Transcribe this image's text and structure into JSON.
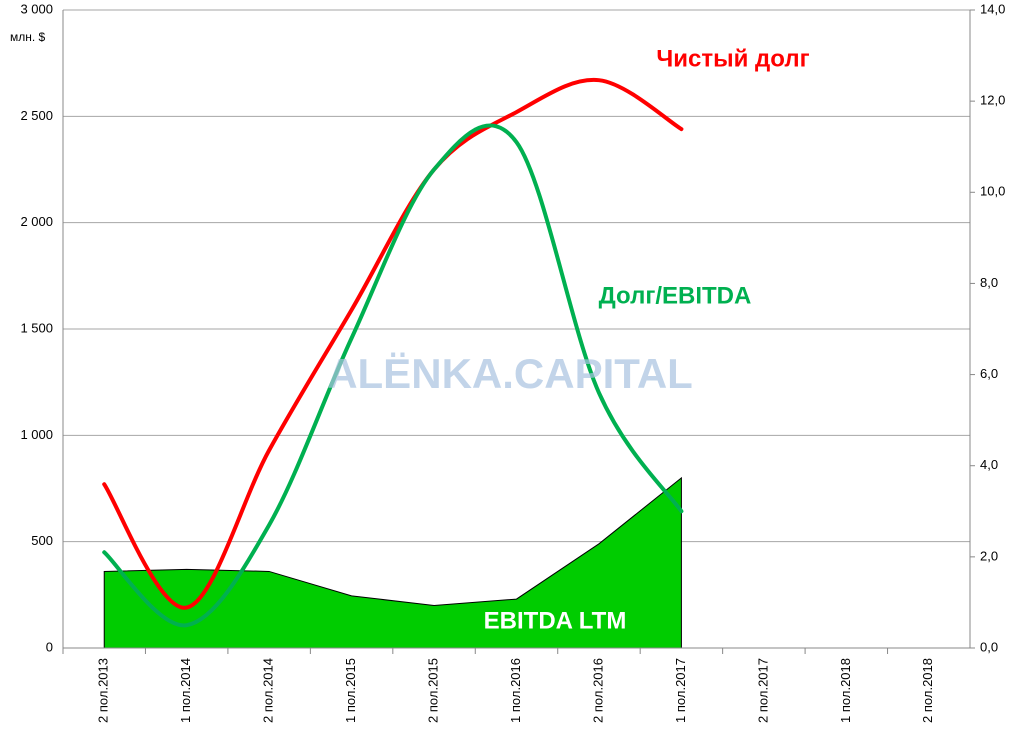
{
  "chart_data": {
    "type": "combo",
    "y_label": "млн. $",
    "categories": [
      "2 пол.2013",
      "1 пол.2014",
      "2 пол.2014",
      "1 пол.2015",
      "2 пол.2015",
      "1 пол.2016",
      "2 пол.2016",
      "1 пол.2017",
      "2 пол.2017",
      "1 пол.2018",
      "2 пол.2018"
    ],
    "series": [
      {
        "name": "EBITDA LTM",
        "type": "area",
        "color": "#00cc00",
        "values": [
          360,
          370,
          360,
          245,
          200,
          230,
          490,
          800,
          null,
          null,
          null
        ]
      },
      {
        "name": "Чистый долг",
        "type": "line",
        "color": "#ff0000",
        "values": [
          770,
          190,
          930,
          1590,
          2250,
          2520,
          2670,
          2440,
          null,
          null,
          null
        ]
      },
      {
        "name": "Долг/EBITDA",
        "type": "line",
        "color": "#00b050",
        "axis": "y2",
        "values": [
          2.1,
          0.5,
          2.7,
          6.8,
          10.5,
          11.1,
          5.6,
          3.0,
          null,
          null,
          null
        ]
      }
    ],
    "annotations": [
      "ALЁNKA.CAPITAL"
    ],
    "ylim": [
      0,
      3000
    ],
    "yticks": [
      0,
      {
        "value": 500,
        "label": "500"
      },
      {
        "value": 1000,
        "label": "1 000"
      },
      {
        "value": 1500,
        "label": "1 500"
      },
      {
        "value": 2000,
        "label": "2 000"
      },
      {
        "value": 2500,
        "label": "2 500"
      },
      {
        "value": 3000,
        "label": "3 000"
      }
    ],
    "y2lim": [
      0,
      14
    ],
    "y2ticks": [
      {
        "value": 0,
        "label": "0,0"
      },
      {
        "value": 2,
        "label": "2,0"
      },
      {
        "value": 4,
        "label": "4,0"
      },
      {
        "value": 6,
        "label": "6,0"
      },
      {
        "value": 8,
        "label": "8,0"
      },
      {
        "value": 10,
        "label": "10,0"
      },
      {
        "value": 12,
        "label": "12,0"
      },
      {
        "value": 14,
        "label": "14,0"
      }
    ],
    "grid": true
  }
}
